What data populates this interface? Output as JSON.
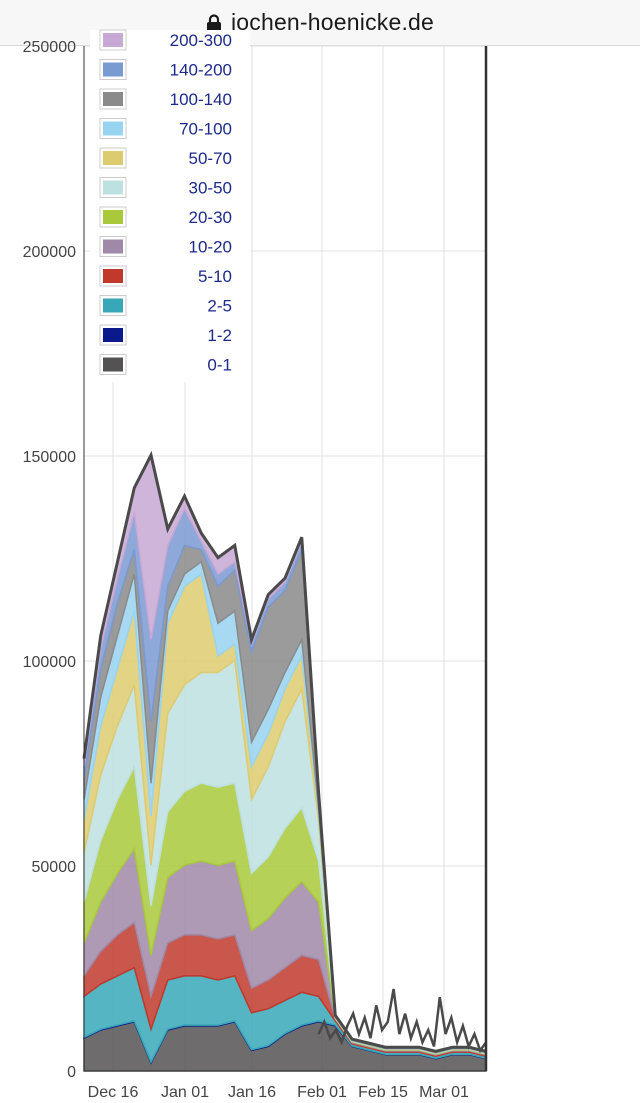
{
  "browser": {
    "url": "jochen-hoenicke.de",
    "lock_icon": "lock-icon"
  },
  "chart_data": {
    "type": "area",
    "stacked": true,
    "title": "",
    "xlabel": "",
    "ylabel": "",
    "ylim": [
      0,
      250000
    ],
    "yticks": [
      0,
      50000,
      100000,
      150000,
      200000,
      250000
    ],
    "xticks": [
      "Dec 16",
      "Jan 01",
      "Jan 16",
      "Feb 01",
      "Feb 15",
      "Mar 01"
    ],
    "grid": true,
    "legend_position": "top-left",
    "x": [
      "Dec 04",
      "Dec 08",
      "Dec 12",
      "Dec 16",
      "Dec 20",
      "Dec 24",
      "Dec 28",
      "Jan 01",
      "Jan 05",
      "Jan 09",
      "Jan 13",
      "Jan 17",
      "Jan 21",
      "Jan 25",
      "Jan 29",
      "Feb 02",
      "Feb 06",
      "Feb 10",
      "Feb 14",
      "Feb 18",
      "Feb 22",
      "Feb 26",
      "Mar 02",
      "Mar 06",
      "Mar 10"
    ],
    "series": [
      {
        "name": "0-1",
        "color": "#555253",
        "values": [
          8000,
          10000,
          11000,
          12000,
          2000,
          10000,
          11000,
          11000,
          11000,
          12000,
          5000,
          6000,
          9000,
          11000,
          12000,
          11000,
          6000,
          5000,
          4000,
          4000,
          4000,
          3000,
          4000,
          4000,
          3000
        ]
      },
      {
        "name": "1-2",
        "color": "#0a1a8c",
        "values": [
          200,
          200,
          200,
          200,
          200,
          200,
          200,
          200,
          200,
          200,
          200,
          200,
          200,
          200,
          200,
          200,
          100,
          100,
          100,
          100,
          100,
          100,
          100,
          100,
          100
        ]
      },
      {
        "name": "2-5",
        "color": "#38a8b8",
        "values": [
          10000,
          11000,
          12000,
          13000,
          8000,
          12000,
          12000,
          12000,
          11000,
          11000,
          9000,
          9000,
          8000,
          8000,
          6000,
          1000,
          500,
          500,
          500,
          500,
          500,
          500,
          500,
          500,
          500
        ]
      },
      {
        "name": "5-10",
        "color": "#c0392b",
        "values": [
          5000,
          8000,
          10000,
          11000,
          8000,
          9000,
          10000,
          10000,
          10000,
          10000,
          6000,
          7000,
          8000,
          9000,
          9000,
          500,
          300,
          300,
          300,
          300,
          300,
          300,
          300,
          300,
          300
        ]
      },
      {
        "name": "10-20",
        "color": "#a088a8",
        "values": [
          8000,
          12000,
          15000,
          18000,
          10000,
          16000,
          17000,
          18000,
          18000,
          18000,
          14000,
          15000,
          17000,
          18000,
          14000,
          200,
          200,
          200,
          200,
          200,
          200,
          200,
          200,
          200,
          200
        ]
      },
      {
        "name": "20-30",
        "color": "#a9c93a",
        "values": [
          10000,
          15000,
          18000,
          20000,
          12000,
          16000,
          18000,
          19000,
          19000,
          19000,
          14000,
          15000,
          17000,
          18000,
          10000,
          100,
          100,
          100,
          100,
          100,
          100,
          100,
          100,
          100,
          100
        ]
      },
      {
        "name": "30-50",
        "color": "#bde0e0",
        "values": [
          12000,
          16000,
          18000,
          20000,
          10000,
          24000,
          26000,
          27000,
          28000,
          30000,
          18000,
          22000,
          26000,
          29000,
          10000,
          100,
          100,
          100,
          100,
          100,
          100,
          100,
          100,
          100,
          100
        ]
      },
      {
        "name": "50-70",
        "color": "#ddcb70",
        "values": [
          8000,
          12000,
          14000,
          18000,
          12000,
          22000,
          24000,
          24000,
          4000,
          4000,
          8000,
          8000,
          8000,
          8000,
          2000,
          100,
          100,
          100,
          100,
          100,
          100,
          100,
          100,
          100,
          100
        ]
      },
      {
        "name": "70-100",
        "color": "#98d4f0",
        "values": [
          5000,
          7000,
          8000,
          9000,
          8000,
          3000,
          3000,
          3000,
          8000,
          8000,
          6000,
          6000,
          4000,
          4000,
          1000,
          100,
          100,
          100,
          100,
          100,
          100,
          100,
          100,
          100,
          100
        ]
      },
      {
        "name": "100-140",
        "color": "#8a8a8a",
        "values": [
          5000,
          7000,
          8000,
          6000,
          15000,
          6000,
          7000,
          3000,
          9000,
          10000,
          22000,
          25000,
          20000,
          22000,
          3000,
          100,
          100,
          100,
          100,
          100,
          100,
          100,
          100,
          100,
          100
        ]
      },
      {
        "name": "140-200",
        "color": "#7a9ad2",
        "values": [
          3000,
          5000,
          6000,
          9000,
          20000,
          10000,
          9000,
          2000,
          3000,
          2000,
          2000,
          2000,
          2000,
          2000,
          500,
          100,
          100,
          100,
          100,
          100,
          100,
          100,
          100,
          100,
          100
        ]
      },
      {
        "name": "200-300",
        "color": "#c8a8d4",
        "values": [
          2000,
          3000,
          4000,
          6000,
          45000,
          4000,
          3000,
          2000,
          4000,
          4000,
          1000,
          1000,
          1000,
          1000,
          500,
          100,
          100,
          100,
          100,
          100,
          100,
          100,
          100,
          100,
          100
        ]
      }
    ],
    "noise_tail": [
      9000,
      12000,
      8000,
      10000,
      7000,
      11000,
      14000,
      9000,
      13000,
      8000,
      16000,
      10000,
      12000,
      20000,
      9000,
      14000,
      8000,
      12000,
      7000,
      10000,
      6000,
      18000,
      9000,
      13000,
      7000,
      11000,
      6000,
      9000,
      5000,
      7000
    ]
  }
}
